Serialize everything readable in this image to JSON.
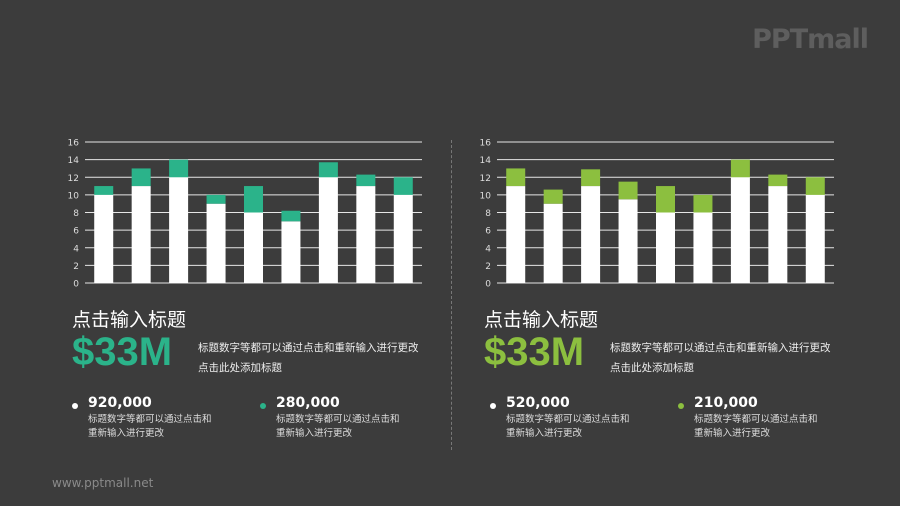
{
  "logo": "PPTmall",
  "footer_url": "www.pptmall.net",
  "colors": {
    "background": "#3c3c3c",
    "teal": "#2bb38a",
    "lime": "#8cbf3f",
    "base": "#ffffff"
  },
  "panels": [
    {
      "title": "点击输入标题",
      "big": "$33M",
      "desc": "标题数字等都可以通过点击和重新输入进行更改 点击此处添加标题",
      "stats": [
        {
          "value": "920,000",
          "text": "标题数字等都可以通过点击和重新输入进行更改",
          "dot": "#ffffff"
        },
        {
          "value": "280,000",
          "text": "标题数字等都可以通过点击和重新输入进行更改",
          "dot": "#2bb38a"
        }
      ]
    },
    {
      "title": "点击输入标题",
      "big": "$33M",
      "desc": "标题数字等都可以通过点击和重新输入进行更改 点击此处添加标题",
      "stats": [
        {
          "value": "520,000",
          "text": "标题数字等都可以通过点击和重新输入进行更改",
          "dot": "#ffffff"
        },
        {
          "value": "210,000",
          "text": "标题数字等都可以通过点击和重新输入进行更改",
          "dot": "#8cbf3f"
        }
      ]
    }
  ],
  "chart_data": [
    {
      "type": "bar",
      "stacked": true,
      "ylim": [
        0,
        16
      ],
      "yticks": [
        0,
        2,
        4,
        6,
        8,
        10,
        12,
        14,
        16
      ],
      "grid": true,
      "series": [
        {
          "values": [
            10,
            11,
            12,
            9,
            8,
            7,
            12,
            11,
            10
          ],
          "color": "#ffffff"
        },
        {
          "values": [
            1,
            2,
            2,
            1,
            3,
            1.2,
            1.7,
            1.3,
            2
          ],
          "color": "#2bb38a"
        }
      ]
    },
    {
      "type": "bar",
      "stacked": true,
      "ylim": [
        0,
        16
      ],
      "yticks": [
        0,
        2,
        4,
        6,
        8,
        10,
        12,
        14,
        16
      ],
      "grid": true,
      "series": [
        {
          "values": [
            11,
            9,
            11,
            9.5,
            8,
            8,
            12,
            11,
            10
          ],
          "color": "#ffffff"
        },
        {
          "values": [
            2,
            1.6,
            1.9,
            2,
            3,
            2,
            2,
            1.3,
            2
          ],
          "color": "#8cbf3f"
        }
      ]
    }
  ]
}
